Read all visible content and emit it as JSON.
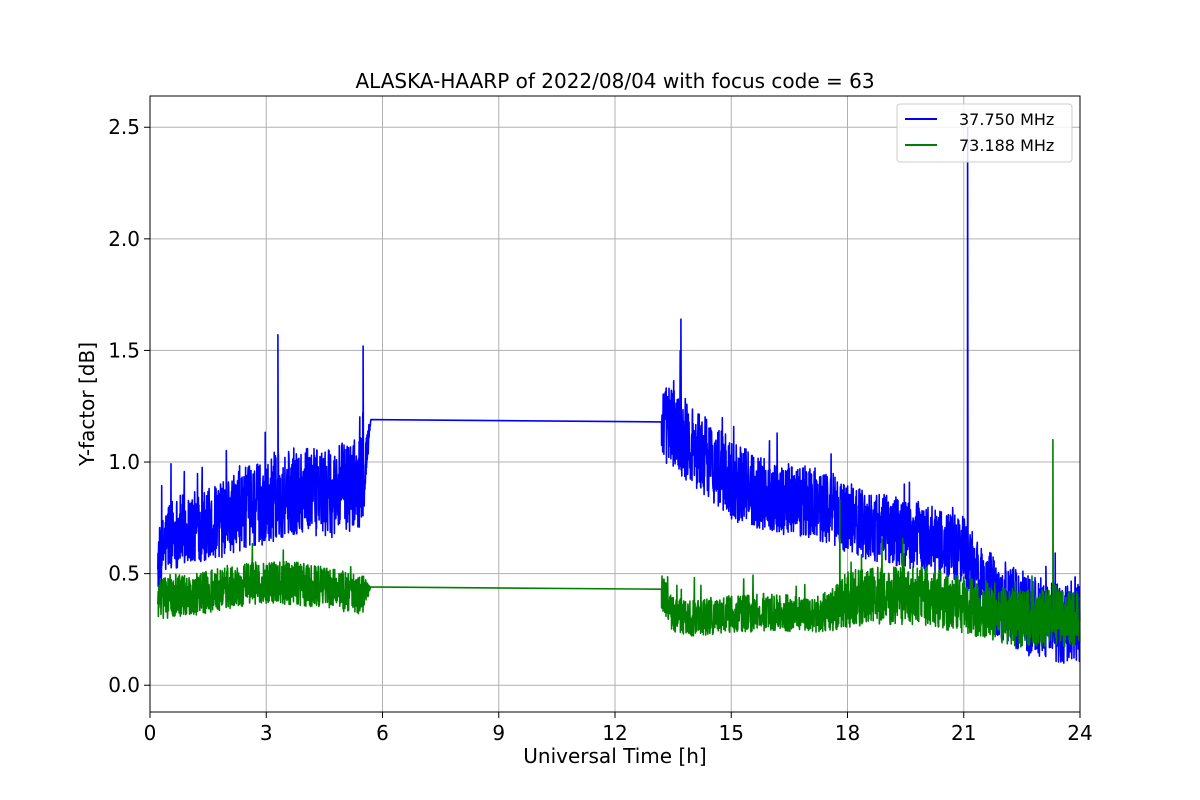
{
  "chart_data": {
    "type": "line",
    "title": "ALASKA-HAARP of 2022/08/04 with focus code = 63",
    "xlabel": "Universal Time [h]",
    "ylabel": "Y-factor [dB]",
    "xlim": [
      0,
      24
    ],
    "ylim": [
      -0.12,
      2.64
    ],
    "xticks": [
      0,
      3,
      6,
      9,
      12,
      15,
      18,
      21,
      24
    ],
    "xtick_labels": [
      "0",
      "3",
      "6",
      "9",
      "12",
      "15",
      "18",
      "21",
      "24"
    ],
    "yticks": [
      0.0,
      0.5,
      1.0,
      1.5,
      2.0,
      2.5
    ],
    "ytick_labels": [
      "0.0",
      "0.5",
      "1.0",
      "1.5",
      "2.0",
      "2.5"
    ],
    "grid": true,
    "legend_position": "top-right",
    "series": [
      {
        "name": "37.750 MHz",
        "color": "#0000ff",
        "x": [
          0.2,
          0.5,
          1.0,
          1.5,
          2.0,
          2.5,
          3.0,
          3.5,
          4.0,
          4.5,
          5.0,
          5.5,
          5.7,
          13.2,
          13.5,
          14.0,
          14.5,
          15.0,
          15.5,
          16.0,
          16.5,
          17.0,
          17.5,
          18.0,
          18.5,
          19.0,
          19.5,
          20.0,
          20.5,
          21.0,
          21.5,
          22.0,
          22.5,
          23.0,
          23.5,
          24.0
        ],
        "y": [
          0.55,
          0.68,
          0.7,
          0.72,
          0.75,
          0.8,
          0.82,
          0.86,
          0.88,
          0.85,
          0.88,
          0.92,
          1.19,
          1.18,
          1.15,
          1.08,
          1.0,
          0.92,
          0.88,
          0.85,
          0.83,
          0.82,
          0.8,
          0.75,
          0.72,
          0.7,
          0.68,
          0.66,
          0.62,
          0.6,
          0.45,
          0.38,
          0.32,
          0.3,
          0.28,
          0.3
        ],
        "noise": [
          0.22,
          0.25,
          0.25,
          0.25,
          0.27,
          0.28,
          0.3,
          0.3,
          0.3,
          0.3,
          0.32,
          0.32,
          0.0,
          0.25,
          0.3,
          0.28,
          0.28,
          0.28,
          0.26,
          0.25,
          0.25,
          0.25,
          0.25,
          0.25,
          0.24,
          0.24,
          0.24,
          0.24,
          0.24,
          0.24,
          0.26,
          0.28,
          0.28,
          0.28,
          0.28,
          0.3
        ],
        "peaks": [
          [
            3.3,
            1.57
          ],
          [
            13.7,
            1.64
          ],
          [
            21.1,
            2.5
          ],
          [
            5.5,
            1.52
          ]
        ]
      },
      {
        "name": "73.188 MHz",
        "color": "#008000",
        "x": [
          0.2,
          0.5,
          1.0,
          1.5,
          2.0,
          2.5,
          3.0,
          3.5,
          4.0,
          4.5,
          5.0,
          5.5,
          5.7,
          13.2,
          13.5,
          14.0,
          14.5,
          15.0,
          15.5,
          16.0,
          16.5,
          17.0,
          17.5,
          18.0,
          18.5,
          19.0,
          19.5,
          20.0,
          20.5,
          21.0,
          21.5,
          22.0,
          22.5,
          23.0,
          23.5,
          24.0
        ],
        "y": [
          0.38,
          0.4,
          0.4,
          0.42,
          0.44,
          0.45,
          0.46,
          0.46,
          0.45,
          0.44,
          0.42,
          0.4,
          0.44,
          0.43,
          0.32,
          0.3,
          0.31,
          0.32,
          0.32,
          0.33,
          0.32,
          0.32,
          0.33,
          0.38,
          0.4,
          0.4,
          0.4,
          0.4,
          0.38,
          0.36,
          0.34,
          0.32,
          0.3,
          0.3,
          0.3,
          0.3
        ],
        "noise": [
          0.14,
          0.15,
          0.15,
          0.15,
          0.15,
          0.15,
          0.15,
          0.15,
          0.15,
          0.14,
          0.14,
          0.14,
          0.0,
          0.14,
          0.13,
          0.13,
          0.13,
          0.13,
          0.13,
          0.13,
          0.13,
          0.13,
          0.14,
          0.2,
          0.2,
          0.2,
          0.2,
          0.2,
          0.2,
          0.2,
          0.2,
          0.2,
          0.2,
          0.2,
          0.2,
          0.2
        ],
        "peaks": [
          [
            23.3,
            1.1
          ],
          [
            17.8,
            0.83
          ]
        ]
      }
    ]
  }
}
